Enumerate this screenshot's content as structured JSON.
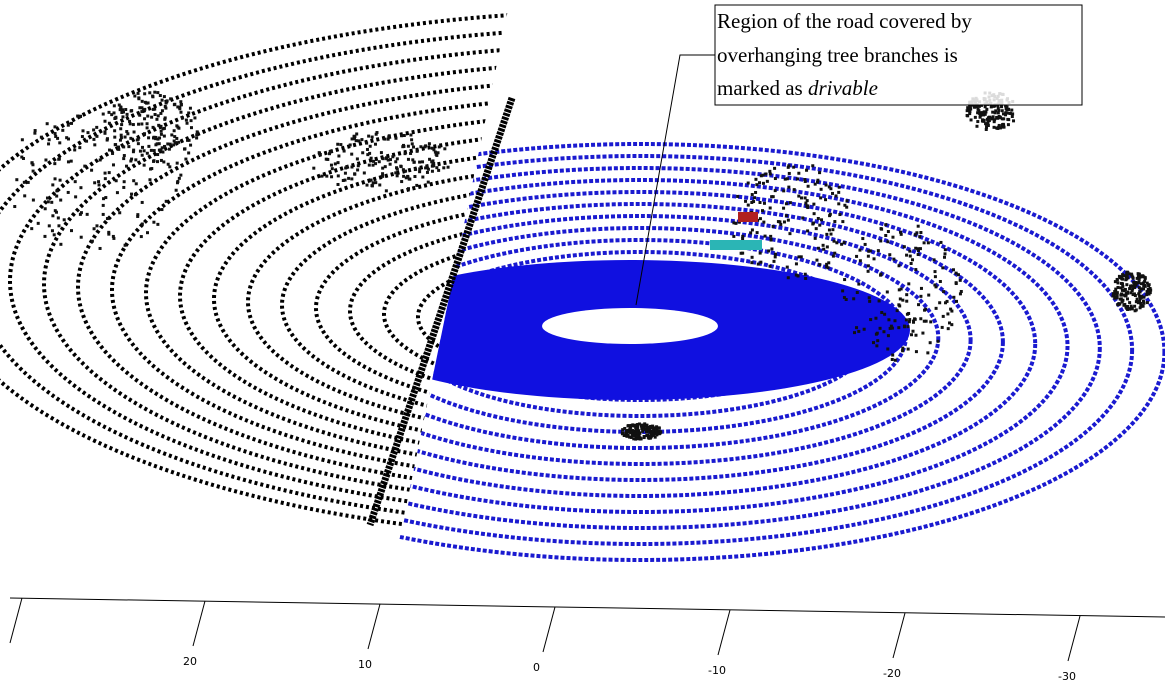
{
  "annotation": {
    "lines": [
      "Region of the road covered by",
      "overhanging tree branches is",
      "marked as "
    ],
    "emphasis": "drivable"
  },
  "axis": {
    "tick_labels": [
      "20",
      "10",
      "0",
      "-10",
      "-20",
      "-30"
    ]
  }
}
